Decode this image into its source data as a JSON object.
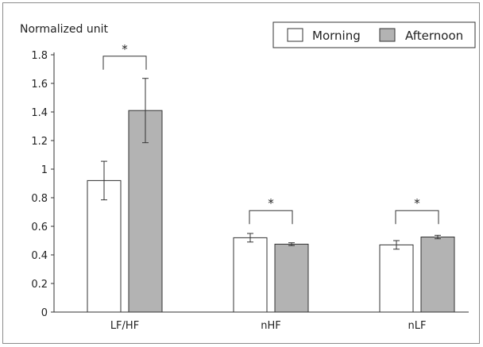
{
  "chart_data": {
    "type": "bar",
    "ylabel": "Normalized unit",
    "ylim": [
      0,
      1.8
    ],
    "yticks": [
      "0",
      "0.2",
      "0.4",
      "0.6",
      "0.8",
      "1",
      "1.2",
      "1.4",
      "1.6",
      "1.8"
    ],
    "categories": [
      "LF/HF",
      "nHF",
      "nLF"
    ],
    "grid": false,
    "legend_position": "top-right",
    "series": [
      {
        "name": "Morning",
        "values": [
          0.92,
          0.52,
          0.47
        ],
        "errors": [
          0.135,
          0.03,
          0.03
        ],
        "color": "#ffffff"
      },
      {
        "name": "Afternoon",
        "values": [
          1.41,
          0.475,
          0.525
        ],
        "errors": [
          0.225,
          0.01,
          0.012
        ],
        "color": "#b3b3b3"
      }
    ],
    "annotations": [
      {
        "category": "LF/HF",
        "text": "*"
      },
      {
        "category": "nHF",
        "text": "*"
      },
      {
        "category": "nLF",
        "text": "*"
      }
    ]
  }
}
